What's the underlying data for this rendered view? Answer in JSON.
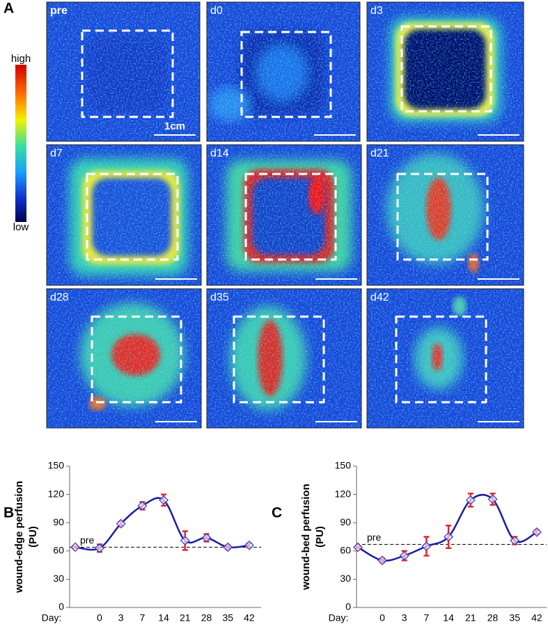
{
  "panel_a": {
    "letter": "A",
    "colorbar": {
      "high": "high",
      "low": "low"
    },
    "images": [
      {
        "label": "pre",
        "scale": "1cm"
      },
      {
        "label": "d0"
      },
      {
        "label": "d3"
      },
      {
        "label": "d7"
      },
      {
        "label": "d14"
      },
      {
        "label": "d21"
      },
      {
        "label": "d28"
      },
      {
        "label": "d35"
      },
      {
        "label": "d42"
      }
    ]
  },
  "chart_data": [
    {
      "type": "line",
      "letter": "B",
      "y_label": [
        "wound-edge perfusion",
        "(PU)"
      ],
      "x_label": "Day:",
      "categories": [
        null,
        "0",
        "3",
        "7",
        "14",
        "21",
        "28",
        "35",
        "42"
      ],
      "values": [
        64,
        63,
        89,
        108,
        114,
        71,
        74,
        64,
        66
      ],
      "errors": [
        1,
        4,
        2,
        4,
        6,
        10,
        4,
        2,
        2
      ],
      "ylim": [
        0,
        150
      ],
      "yticks": [
        0,
        30,
        60,
        90,
        120,
        150
      ],
      "reference": {
        "value": 64,
        "label": "pre"
      },
      "color": "#1a1aa6",
      "marker_color": "#3b3bd0",
      "error_color": "#e2262c"
    },
    {
      "type": "line",
      "letter": "C",
      "y_label": [
        "wound-bed perfusion",
        "(PU)"
      ],
      "x_label": "Day:",
      "categories": [
        null,
        "0",
        "3",
        "7",
        "14",
        "21",
        "28",
        "35",
        "42"
      ],
      "values": [
        64,
        50,
        55,
        65,
        75,
        114,
        115,
        71,
        80
      ],
      "errors": [
        1,
        2,
        5,
        10,
        12,
        7,
        6,
        4,
        2
      ],
      "ylim": [
        0,
        150
      ],
      "yticks": [
        0,
        30,
        60,
        90,
        120,
        150
      ],
      "reference": {
        "value": 67,
        "label": "pre"
      },
      "color": "#1a1aa6",
      "marker_color": "#3b3bd0",
      "error_color": "#e2262c"
    }
  ]
}
